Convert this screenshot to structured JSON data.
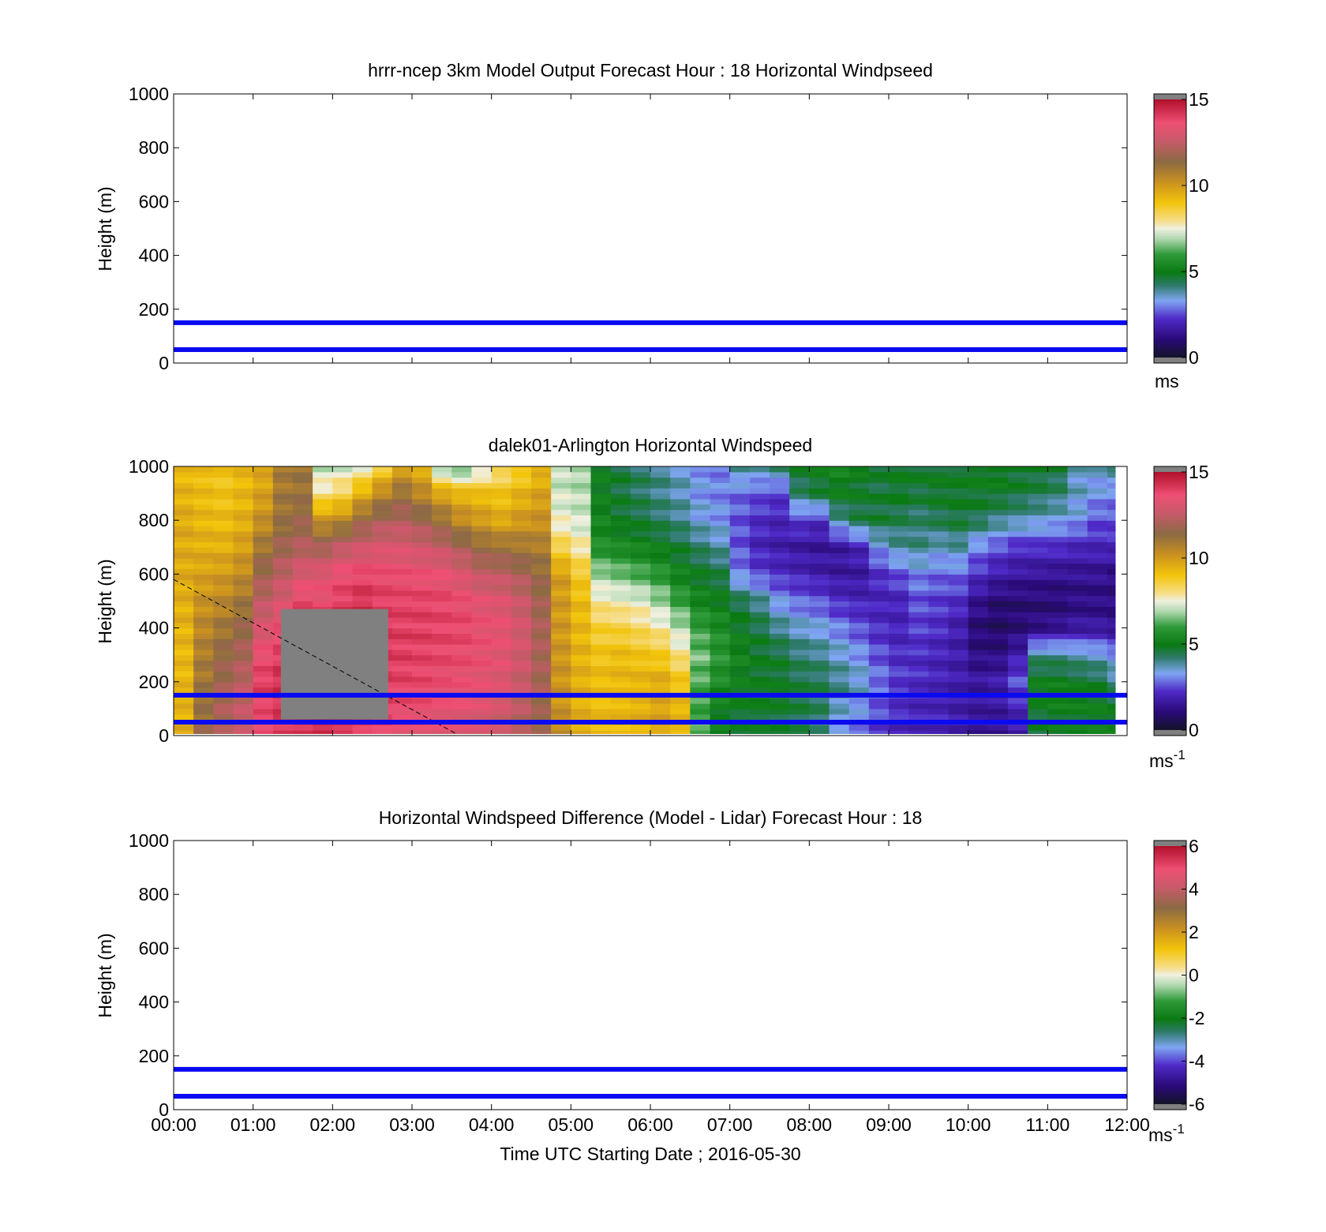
{
  "chart_data": [
    {
      "type": "heatmap",
      "title": "hrrr-ncep 3km Model Output   Forecast Hour : 18 Horizontal Windpseed",
      "ylabel": "Height (m)",
      "xlabel": "",
      "ylim": [
        0,
        1000
      ],
      "yticks": [
        "0",
        "200",
        "400",
        "600",
        "800",
        "1000"
      ],
      "xlim_hours": [
        0,
        12
      ],
      "colorbar": {
        "min": 0,
        "max": 15,
        "ticks": [
          "0",
          "5",
          "10",
          "15"
        ],
        "unit": "ms",
        "unit_sup": ""
      },
      "hlines_m": [
        50,
        150
      ],
      "has_field": false
    },
    {
      "type": "heatmap",
      "title": "dalek01-Arlington  Horizontal Windspeed",
      "ylabel": "Height (m)",
      "xlabel": "",
      "ylim": [
        0,
        1000
      ],
      "yticks": [
        "0",
        "200",
        "400",
        "600",
        "800",
        "1000"
      ],
      "xlim_hours": [
        0,
        12
      ],
      "colorbar": {
        "min": 0,
        "max": 15,
        "ticks": [
          "0",
          "5",
          "10",
          "15"
        ],
        "unit": "ms",
        "unit_sup": "-1"
      },
      "hlines_m": [
        50,
        150
      ],
      "has_field": true,
      "column_hours": [
        0.0,
        0.25,
        0.5,
        0.75,
        1.0,
        1.25,
        1.5,
        1.75,
        2.0,
        2.25,
        2.5,
        2.75,
        3.0,
        3.25,
        3.5,
        3.75,
        4.0,
        4.25,
        4.5,
        4.75,
        5.0,
        5.25,
        5.5,
        5.75,
        6.0,
        6.25,
        6.5,
        6.75,
        7.0,
        7.25,
        7.5,
        7.75,
        8.0,
        8.25,
        8.5,
        8.75,
        9.0,
        9.25,
        9.5,
        9.75,
        10.0,
        10.25,
        10.5,
        10.75,
        11.0,
        11.25,
        11.5,
        11.75
      ],
      "field_end_hour": 11.85,
      "level_heights_m": [
        0,
        100,
        200,
        300,
        400,
        500,
        600,
        700,
        800,
        900,
        1000
      ],
      "profiles_ms": [
        [
          9.5,
          9.4,
          9.3,
          9.3,
          9.4,
          9.5,
          9.6,
          9.6,
          9.6,
          9.4,
          9.2
        ],
        [
          11.5,
          11.2,
          11.0,
          10.8,
          10.5,
          10.2,
          9.8,
          9.5,
          9.3,
          9.2,
          9.1
        ],
        [
          12.0,
          12.0,
          11.8,
          11.5,
          11.0,
          10.5,
          10.0,
          9.5,
          9.2,
          9.0,
          9.0
        ],
        [
          12.5,
          12.5,
          12.3,
          12.0,
          11.6,
          11.0,
          10.4,
          9.9,
          9.5,
          9.3,
          9.3
        ],
        [
          13.5,
          13.8,
          14.0,
          13.6,
          13.0,
          12.4,
          11.8,
          11.0,
          10.3,
          9.8,
          9.6
        ],
        [
          14.0,
          14.2,
          14.3,
          14.0,
          13.6,
          13.0,
          12.4,
          11.8,
          11.2,
          11.0,
          10.8
        ],
        [
          14.2,
          14.3,
          14.5,
          14.4,
          14.2,
          13.8,
          13.0,
          12.2,
          11.6,
          11.2,
          11.0
        ],
        [
          14.5,
          14.6,
          14.5,
          14.3,
          14.0,
          13.6,
          13.2,
          12.0,
          10.2,
          8.0,
          7.0
        ],
        [
          14.3,
          14.4,
          14.4,
          14.3,
          14.2,
          14.0,
          13.6,
          12.5,
          10.5,
          8.4,
          7.2
        ],
        [
          14.0,
          14.1,
          14.2,
          14.2,
          14.3,
          14.3,
          13.8,
          12.8,
          11.5,
          9.5,
          7.5
        ],
        [
          13.8,
          13.9,
          14.0,
          14.1,
          14.1,
          14.0,
          13.7,
          13.0,
          12.0,
          10.5,
          8.5
        ],
        [
          13.5,
          13.7,
          13.9,
          14.0,
          14.0,
          13.9,
          13.6,
          13.0,
          12.2,
          11.2,
          9.8
        ],
        [
          13.4,
          13.6,
          13.8,
          13.9,
          14.0,
          13.9,
          13.5,
          12.8,
          11.8,
          10.5,
          9.4
        ],
        [
          13.2,
          13.4,
          13.6,
          13.8,
          13.9,
          13.8,
          13.4,
          12.5,
          11.2,
          9.8,
          6.5
        ],
        [
          13.0,
          13.3,
          13.5,
          13.7,
          13.8,
          13.6,
          13.0,
          12.0,
          10.4,
          9.4,
          6.0
        ],
        [
          12.8,
          13.1,
          13.3,
          13.5,
          13.5,
          13.3,
          12.5,
          11.4,
          10.0,
          9.2,
          7.0
        ],
        [
          12.5,
          12.8,
          13.1,
          13.3,
          13.4,
          13.1,
          12.4,
          11.2,
          9.6,
          9.0,
          8.0
        ],
        [
          12.0,
          12.3,
          12.6,
          12.8,
          12.9,
          12.6,
          12.0,
          11.0,
          10.0,
          9.4,
          8.5
        ],
        [
          11.5,
          11.7,
          11.9,
          12.0,
          12.0,
          11.8,
          11.4,
          10.8,
          10.2,
          9.8,
          9.2
        ],
        [
          10.2,
          10.2,
          10.1,
          10.1,
          10.0,
          10.0,
          9.9,
          8.5,
          7.5,
          7.2,
          7.0
        ],
        [
          9.5,
          9.5,
          9.5,
          9.4,
          9.3,
          9.2,
          8.8,
          7.8,
          7.2,
          7.0,
          6.8
        ],
        [
          9.2,
          9.2,
          9.2,
          9.0,
          8.6,
          7.8,
          6.8,
          5.6,
          5.2,
          5.0,
          5.0
        ],
        [
          9.2,
          9.3,
          9.3,
          9.2,
          8.5,
          7.6,
          6.5,
          5.4,
          4.8,
          4.6,
          4.6
        ],
        [
          9.4,
          9.5,
          9.4,
          9.0,
          8.2,
          7.4,
          6.2,
          5.2,
          4.6,
          4.3,
          4.3
        ],
        [
          9.8,
          9.8,
          9.6,
          8.8,
          7.8,
          6.8,
          5.8,
          5.0,
          4.3,
          4.0,
          4.0
        ],
        [
          9.5,
          9.4,
          9.0,
          8.0,
          7.0,
          6.0,
          5.2,
          4.6,
          4.0,
          3.7,
          3.6
        ],
        [
          6.5,
          6.0,
          6.2,
          6.5,
          6.0,
          5.3,
          4.8,
          4.2,
          3.5,
          3.2,
          3.2
        ],
        [
          5.2,
          5.0,
          5.5,
          5.8,
          5.5,
          5.0,
          4.5,
          3.8,
          3.2,
          3.0,
          3.0
        ],
        [
          4.8,
          4.8,
          5.0,
          5.2,
          4.9,
          4.5,
          3.0,
          2.6,
          2.6,
          2.8,
          4.0
        ],
        [
          4.8,
          4.8,
          4.8,
          4.8,
          4.5,
          4.0,
          2.5,
          2.0,
          2.2,
          2.6,
          3.8
        ],
        [
          4.6,
          4.7,
          4.8,
          4.6,
          4.0,
          3.2,
          2.2,
          1.8,
          2.0,
          2.4,
          4.2
        ],
        [
          4.4,
          4.5,
          4.5,
          4.2,
          3.6,
          2.8,
          2.0,
          1.6,
          2.4,
          4.2,
          4.8
        ],
        [
          4.0,
          4.3,
          4.4,
          4.0,
          3.4,
          2.6,
          1.8,
          1.5,
          2.2,
          4.6,
          5.0
        ],
        [
          3.0,
          3.6,
          4.0,
          3.6,
          3.0,
          2.2,
          1.6,
          1.6,
          3.8,
          5.0,
          5.2
        ],
        [
          2.6,
          3.2,
          3.6,
          3.2,
          2.6,
          2.0,
          1.6,
          2.0,
          4.4,
          4.8,
          4.9
        ],
        [
          2.2,
          2.6,
          2.9,
          2.6,
          2.2,
          2.0,
          2.2,
          3.2,
          4.6,
          4.6,
          4.6
        ],
        [
          2.0,
          2.2,
          2.4,
          2.2,
          2.0,
          2.0,
          2.6,
          3.8,
          4.4,
          4.8,
          4.8
        ],
        [
          2.0,
          2.0,
          2.2,
          2.2,
          2.4,
          2.6,
          3.0,
          4.0,
          4.2,
          4.6,
          4.8
        ],
        [
          2.0,
          2.0,
          2.0,
          2.0,
          2.2,
          2.4,
          2.8,
          3.6,
          4.4,
          4.8,
          4.8
        ],
        [
          1.8,
          1.8,
          1.8,
          1.8,
          1.8,
          2.2,
          2.8,
          3.8,
          4.6,
          4.8,
          4.8
        ],
        [
          1.5,
          1.6,
          1.6,
          1.2,
          1.0,
          1.4,
          2.2,
          3.0,
          4.4,
          4.8,
          5.0
        ],
        [
          1.5,
          1.6,
          1.8,
          1.2,
          0.8,
          1.0,
          1.8,
          2.6,
          4.0,
          4.8,
          5.0
        ],
        [
          1.8,
          2.0,
          2.6,
          1.8,
          1.0,
          1.0,
          1.6,
          2.2,
          3.8,
          4.6,
          4.8
        ],
        [
          4.6,
          4.8,
          5.0,
          4.0,
          1.2,
          1.0,
          1.5,
          2.2,
          3.6,
          4.4,
          4.8
        ],
        [
          4.8,
          5.0,
          5.0,
          4.0,
          1.4,
          1.0,
          1.4,
          2.2,
          3.4,
          4.2,
          4.6
        ],
        [
          4.8,
          5.0,
          4.8,
          3.8,
          1.6,
          1.2,
          1.4,
          2.0,
          3.2,
          3.6,
          3.6
        ],
        [
          5.0,
          5.0,
          4.6,
          3.6,
          1.6,
          1.2,
          1.4,
          2.0,
          2.6,
          3.2,
          3.6
        ],
        [
          5.0,
          4.8,
          4.0,
          3.2,
          1.4,
          1.2,
          1.2,
          2.0,
          2.6,
          3.0,
          4.0
        ]
      ],
      "missing_region": {
        "from_hour": 1.35,
        "to_hour": 2.7,
        "from_m": 60,
        "to_m": 470
      }
    },
    {
      "type": "heatmap",
      "title": "Horizontal Windspeed Difference (Model - Lidar) Forecast Hour : 18",
      "ylabel": "Height (m)",
      "xlabel": "Time UTC  Starting Date ; 2016-05-30",
      "ylim": [
        0,
        1000
      ],
      "yticks": [
        "0",
        "200",
        "400",
        "600",
        "800",
        "1000"
      ],
      "xlim_hours": [
        0,
        12
      ],
      "xticks": [
        "00:00",
        "01:00",
        "02:00",
        "03:00",
        "04:00",
        "05:00",
        "06:00",
        "07:00",
        "08:00",
        "09:00",
        "10:00",
        "11:00",
        "12:00"
      ],
      "colorbar": {
        "min": -6,
        "max": 6,
        "ticks": [
          "-6",
          "-4",
          "-2",
          "0",
          "2",
          "4",
          "6"
        ],
        "unit": "ms",
        "unit_sup": "-1"
      },
      "hlines_m": [
        50,
        150
      ],
      "has_field": false
    }
  ]
}
